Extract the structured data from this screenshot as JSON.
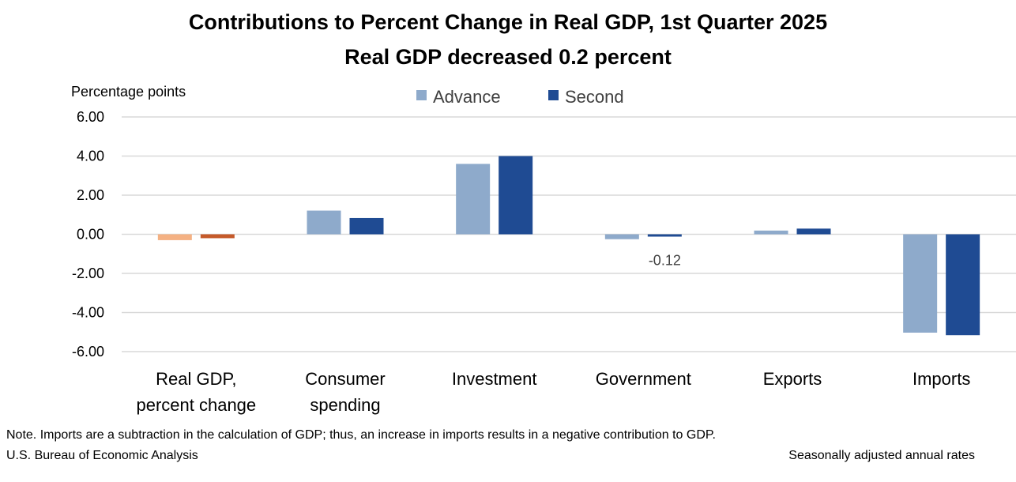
{
  "title": "Contributions to Percent Change in Real GDP, 1st Quarter 2025",
  "subtitle": "Real GDP decreased 0.2 percent",
  "note": "Note. Imports are a subtraction in the calculation of GDP; thus, an increase in imports results in a negative contribution to GDP.",
  "source": "U.S. Bureau of Economic Analysis",
  "rates_note": "Seasonally adjusted annual rates",
  "chart_data": {
    "type": "bar",
    "ylabel": "Percentage points",
    "ylim": [
      -6,
      6
    ],
    "yticks": [
      "6.00",
      "4.00",
      "2.00",
      "0.00",
      "-2.00",
      "-4.00",
      "-6.00"
    ],
    "grid": true,
    "legend_position": "top-center",
    "categories": [
      [
        "Real GDP,",
        "percent change"
      ],
      [
        "Consumer",
        "spending"
      ],
      [
        "Investment"
      ],
      [
        "Government"
      ],
      [
        "Exports"
      ],
      [
        "Imports"
      ]
    ],
    "series": [
      {
        "name": "Advance",
        "color": "#8eaacb",
        "highlight_color": "#f4b183",
        "values": [
          -0.3,
          1.21,
          3.6,
          -0.25,
          0.19,
          -5.03
        ]
      },
      {
        "name": "Second",
        "color": "#1f4b93",
        "highlight_color": "#c55a2a",
        "values": [
          -0.2,
          0.83,
          4.0,
          -0.12,
          0.29,
          -5.16
        ]
      }
    ],
    "data_labels": [
      {
        "series": 1,
        "category": 3,
        "text": "-0.12"
      }
    ]
  }
}
